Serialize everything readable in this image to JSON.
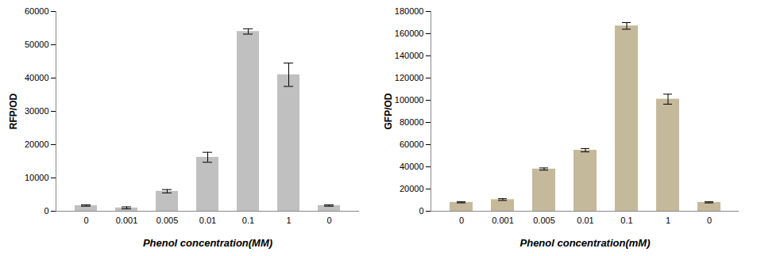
{
  "chart_data": [
    {
      "type": "bar",
      "categories": [
        "0",
        "0.001",
        "0.005",
        "0.01",
        "0.1",
        "1",
        "0"
      ],
      "values": [
        1700,
        1000,
        6000,
        16200,
        54000,
        41000,
        1700
      ],
      "errors": [
        200,
        300,
        500,
        1500,
        800,
        3500,
        200
      ],
      "color": "#c0c0c0",
      "x_label": "Phenol concentration(MM)",
      "y_label": "RFP/OD",
      "ylim": [
        0,
        60000
      ],
      "yticks": [
        0,
        10000,
        20000,
        30000,
        40000,
        50000,
        60000
      ],
      "grid": false
    },
    {
      "type": "bar",
      "categories": [
        "0",
        "0.001",
        "0.005",
        "0.01",
        "0.1",
        "1",
        "0"
      ],
      "values": [
        8000,
        10500,
        38000,
        55000,
        167000,
        101000,
        8000
      ],
      "errors": [
        500,
        800,
        1000,
        1500,
        3000,
        4500,
        500
      ],
      "color": "#c4b99b",
      "x_label": "Phenol concentration(mM)",
      "y_label": "GFP/OD",
      "ylim": [
        0,
        180000
      ],
      "yticks": [
        0,
        20000,
        40000,
        60000,
        80000,
        100000,
        120000,
        140000,
        160000,
        180000
      ],
      "grid": false
    }
  ]
}
